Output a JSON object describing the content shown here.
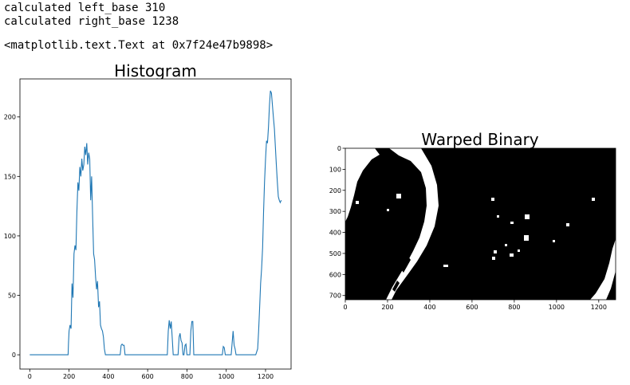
{
  "output_lines": [
    "calculated left_base 310",
    "calculated right_base 1238",
    "<matplotlib.text.Text at 0x7f24e47b9898>"
  ],
  "chart_data": [
    {
      "type": "line",
      "title": "Histogram",
      "xlim": [
        -50,
        1330
      ],
      "ylim": [
        -12,
        232
      ],
      "x_ticks": [
        0,
        200,
        400,
        600,
        800,
        1000,
        1200
      ],
      "y_ticks": [
        0,
        50,
        100,
        150,
        200
      ],
      "line_color": "#1f77b4",
      "series": [
        {
          "x": [
            0,
            195,
            197,
            200,
            205,
            210,
            215,
            220,
            225,
            230,
            235,
            240,
            245,
            250,
            255,
            260,
            265,
            270,
            275,
            280,
            285,
            290,
            295,
            300,
            305,
            310,
            315,
            320,
            325,
            330,
            335,
            340,
            345,
            350,
            355,
            360,
            365,
            370,
            375,
            380,
            385,
            390,
            395,
            400,
            405,
            410,
            460,
            465,
            470,
            475,
            480,
            485,
            700,
            705,
            710,
            715,
            720,
            725,
            730,
            750,
            755,
            760,
            765,
            770,
            775,
            780,
            785,
            790,
            795,
            800,
            805,
            810,
            815,
            820,
            825,
            830,
            835,
            840,
            845,
            850,
            980,
            985,
            990,
            995,
            1025,
            1030,
            1035,
            1040,
            1045,
            1050,
            1150,
            1160,
            1165,
            1170,
            1175,
            1180,
            1185,
            1190,
            1195,
            1200,
            1205,
            1210,
            1215,
            1220,
            1225,
            1230,
            1235,
            1240,
            1245,
            1250,
            1255,
            1260,
            1265,
            1270,
            1275,
            1280
          ],
          "y": [
            0,
            0,
            10,
            20,
            25,
            22,
            60,
            48,
            85,
            92,
            88,
            120,
            145,
            138,
            158,
            150,
            165,
            155,
            160,
            175,
            168,
            178,
            160,
            170,
            165,
            130,
            150,
            115,
            85,
            80,
            65,
            55,
            62,
            40,
            45,
            25,
            22,
            20,
            15,
            5,
            0,
            0,
            0,
            0,
            0,
            0,
            0,
            8,
            9,
            8,
            8,
            0,
            0,
            20,
            29,
            22,
            28,
            15,
            0,
            0,
            0,
            15,
            18,
            12,
            10,
            0,
            0,
            8,
            9,
            0,
            0,
            0,
            0,
            20,
            28,
            28,
            0,
            0,
            0,
            0,
            0,
            7,
            6,
            0,
            0,
            10,
            20,
            8,
            5,
            0,
            0,
            5,
            20,
            40,
            60,
            72,
            90,
            120,
            145,
            165,
            180,
            178,
            192,
            210,
            222,
            220,
            210,
            200,
            190,
            175,
            160,
            145,
            133,
            130,
            128,
            130
          ]
        }
      ]
    },
    {
      "type": "heatmap",
      "title": "Warped Binary",
      "colormap": "gray",
      "x_ticks": [
        0,
        200,
        400,
        600,
        800,
        1000,
        1200
      ],
      "y_ticks": [
        0,
        100,
        200,
        300,
        400,
        500,
        600,
        700
      ],
      "xlim": [
        0,
        1280
      ],
      "ylim": [
        720,
        0
      ]
    }
  ]
}
